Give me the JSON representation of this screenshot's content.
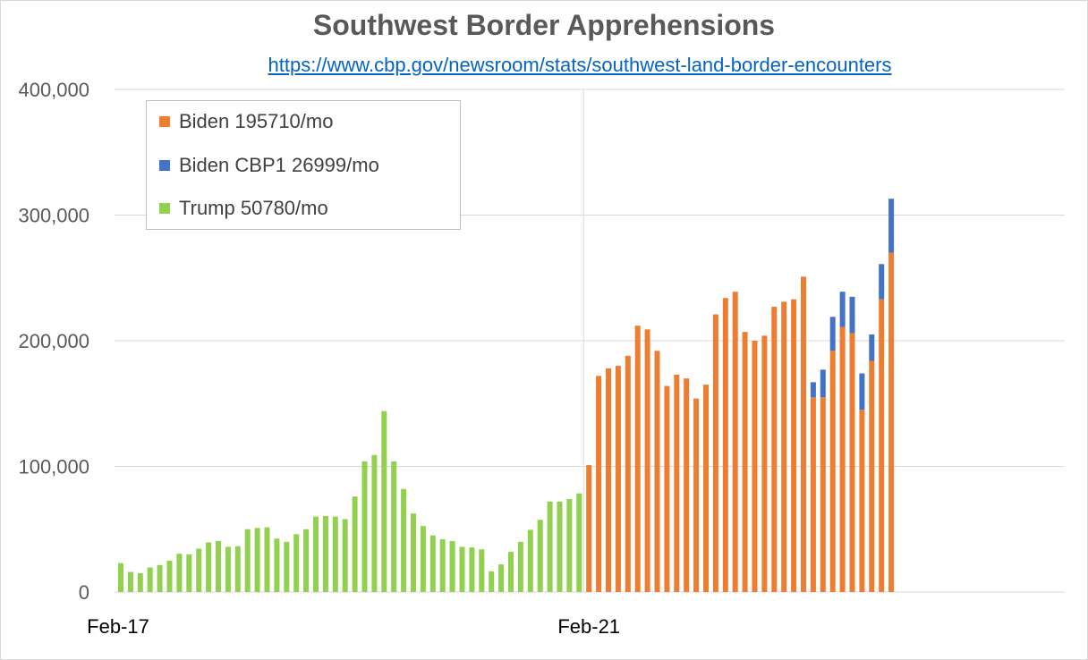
{
  "chart_data": {
    "type": "bar",
    "title": "Southwest Border Apprehensions",
    "subtitle": "https://www.cbp.gov/newsroom/stats/southwest-land-border-encounters",
    "xlabel": "",
    "ylabel": "",
    "ylim": [
      0,
      400000
    ],
    "y_ticks": [
      "0",
      "100,000",
      "200,000",
      "300,000",
      "400,000"
    ],
    "x_ticks": [
      "Feb-17",
      "Feb-21"
    ],
    "grid": true,
    "legend_position": "top-left",
    "series": [
      {
        "name": "Trump 50780/mo",
        "color": "#92d050",
        "values": [
          23000,
          16000,
          15000,
          19500,
          21500,
          25000,
          30500,
          30000,
          34500,
          39500,
          40500,
          36000,
          36500,
          50000,
          51000,
          51500,
          42500,
          40000,
          46000,
          50000,
          60000,
          60500,
          60000,
          58000,
          76000,
          104000,
          109000,
          144000,
          104000,
          82000,
          62500,
          52500,
          45000,
          42000,
          40500,
          36000,
          35500,
          34000,
          16500,
          22000,
          32000,
          40000,
          49500,
          57500,
          72000,
          72000,
          74000,
          78500
        ]
      },
      {
        "name": "Biden 195710/mo",
        "color": "#ed7d31",
        "values": [
          101000,
          172000,
          178000,
          180000,
          188000,
          212000,
          209000,
          192000,
          164000,
          173000,
          170000,
          154000,
          165000,
          221000,
          234000,
          239000,
          207000,
          200000,
          204000,
          227000,
          231000,
          233000,
          251000,
          155000,
          155000,
          192000,
          211000,
          206000,
          145000,
          184000,
          233000,
          270000
        ]
      },
      {
        "name": "Biden CBP1 26999/mo",
        "color": "#4472c4",
        "values": [
          0,
          0,
          0,
          0,
          0,
          0,
          0,
          0,
          0,
          0,
          0,
          0,
          0,
          0,
          0,
          0,
          0,
          0,
          0,
          0,
          0,
          0,
          0,
          12000,
          22000,
          27000,
          28000,
          29000,
          29000,
          21000,
          28000,
          43000
        ]
      }
    ]
  }
}
